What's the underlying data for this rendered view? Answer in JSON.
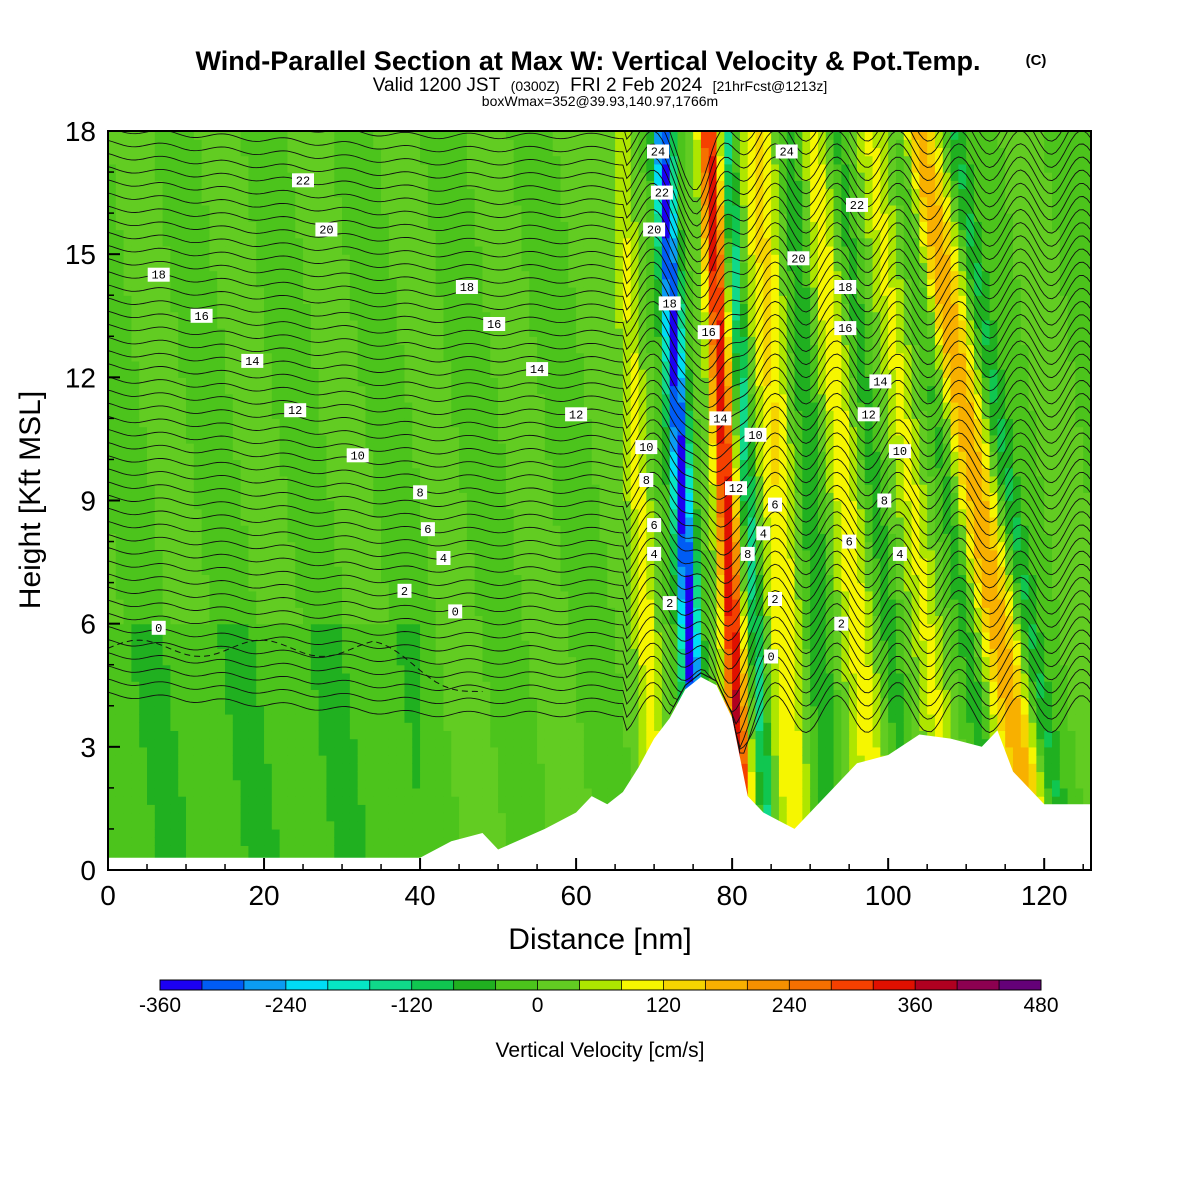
{
  "header": {
    "title": "Wind-Parallel Section at Max W: Vertical Velocity & Pot.Temp.",
    "copyright": "(C)",
    "valid_prefix": "Valid 1200 JST",
    "valid_utc": "(0300Z)",
    "valid_date": "FRI 2 Feb 2024",
    "forecast_tag": "[21hrFcst@1213z]",
    "box_info": "boxWmax=352@39.93,140.97,1766m"
  },
  "chart_data": {
    "type": "heatmap",
    "title": "Wind-Parallel Section at Max W: Vertical Velocity & Pot.Temp.",
    "xlabel": "Distance [nm]",
    "ylabel": "Height [Kft MSL]",
    "xlim": [
      0,
      126
    ],
    "ylim": [
      0,
      18
    ],
    "xticks": [
      0,
      20,
      40,
      60,
      80,
      100,
      120
    ],
    "yticks": [
      0,
      3,
      6,
      9,
      12,
      15,
      18
    ],
    "grid": false,
    "field": "Vertical Velocity",
    "colorbar": {
      "label": "Vertical Velocity [cm/s]",
      "levels": [
        -360,
        -320,
        -280,
        -240,
        -200,
        -160,
        -120,
        -80,
        -40,
        0,
        40,
        80,
        120,
        160,
        200,
        240,
        280,
        320,
        360,
        400,
        440,
        480
      ],
      "tick_labels": [
        "-360",
        "-240",
        "-120",
        "0",
        "120",
        "240",
        "360",
        "480"
      ],
      "colors": [
        "#1c00f2",
        "#005cf5",
        "#0b9cf2",
        "#00dcf5",
        "#06e6c4",
        "#10d98a",
        "#10c650",
        "#20b020",
        "#4cc41c",
        "#62cc22",
        "#aee600",
        "#f6f600",
        "#f6d400",
        "#f8b000",
        "#f59000",
        "#f57000",
        "#f54000",
        "#e01000",
        "#b00020",
        "#8c0050",
        "#640078"
      ]
    },
    "max_vertical_velocity_cms": 352,
    "terrain_profile": {
      "x": [
        0,
        40,
        44,
        48,
        50,
        56,
        60,
        62,
        64,
        66,
        68,
        70,
        72,
        74,
        76,
        78,
        80,
        82,
        84,
        86,
        88,
        90,
        92,
        94,
        96,
        100,
        104,
        108,
        112,
        114,
        116,
        118,
        120,
        126
      ],
      "height": [
        0.3,
        0.3,
        0.7,
        0.9,
        0.5,
        1.0,
        1.4,
        1.8,
        1.6,
        1.9,
        2.5,
        3.2,
        3.7,
        4.4,
        4.7,
        4.5,
        3.7,
        1.8,
        1.4,
        1.2,
        1.0,
        1.4,
        1.8,
        2.2,
        2.6,
        2.8,
        3.3,
        3.2,
        3.0,
        3.4,
        2.4,
        2.0,
        1.6,
        1.6
      ]
    },
    "ridges": [
      {
        "name": "updraft",
        "x0": 80.0,
        "slope": 0.25,
        "sign": 1,
        "amp": 352,
        "width": 1.3
      },
      {
        "name": "downdraft",
        "x0": 74.5,
        "slope": 0.29,
        "sign": -1,
        "amp": 340,
        "width": 1.3
      },
      {
        "name": "downstream-sink",
        "x0": 83.0,
        "slope": 0.3,
        "sign": -1,
        "amp": 140,
        "width": 0.9
      },
      {
        "name": "wave-rise",
        "x0": 69.0,
        "slope": 0.28,
        "sign": 1,
        "amp": 90,
        "width": 1.6
      },
      {
        "name": "wave-rise",
        "x0": 86.5,
        "slope": 0.28,
        "sign": 1,
        "amp": 120,
        "width": 2.2
      },
      {
        "name": "wave-sink",
        "x0": 91.0,
        "slope": 0.28,
        "sign": -1,
        "amp": 90,
        "width": 1.6
      },
      {
        "name": "wave-rise",
        "x0": 96.0,
        "slope": 0.5,
        "sign": 1,
        "amp": 110,
        "width": 2.3
      },
      {
        "name": "wave-sink",
        "x0": 100.0,
        "slope": 0.55,
        "sign": -1,
        "amp": 70,
        "width": 1.5
      },
      {
        "name": "wave-rise",
        "x0": 105.0,
        "slope": 0.6,
        "sign": 1,
        "amp": 90,
        "width": 2.0
      },
      {
        "name": "wave-sink",
        "x0": 110.0,
        "slope": 0.7,
        "sign": -1,
        "amp": 70,
        "width": 1.4
      },
      {
        "name": "wave-rise",
        "x0": 114.0,
        "slope": 0.85,
        "sign": 1,
        "amp": 180,
        "width": 2.6
      },
      {
        "name": "wave-sink",
        "x0": 118.0,
        "slope": 0.8,
        "sign": -1,
        "amp": 90,
        "width": 1.4
      }
    ],
    "isentrope_labels": [
      {
        "text": "0",
        "x": 6.5,
        "y": 5.9
      },
      {
        "text": "2",
        "x": 38,
        "y": 6.8
      },
      {
        "text": "0",
        "x": 44.5,
        "y": 6.3
      },
      {
        "text": "4",
        "x": 43,
        "y": 7.6
      },
      {
        "text": "6",
        "x": 41,
        "y": 8.3
      },
      {
        "text": "8",
        "x": 40,
        "y": 9.2
      },
      {
        "text": "10",
        "x": 32,
        "y": 10.1
      },
      {
        "text": "12",
        "x": 24,
        "y": 11.2
      },
      {
        "text": "14",
        "x": 18.5,
        "y": 12.4
      },
      {
        "text": "16",
        "x": 12,
        "y": 13.5
      },
      {
        "text": "18",
        "x": 6.5,
        "y": 14.5
      },
      {
        "text": "20",
        "x": 28,
        "y": 15.6
      },
      {
        "text": "22",
        "x": 25,
        "y": 16.8
      },
      {
        "text": "18",
        "x": 46,
        "y": 14.2
      },
      {
        "text": "16",
        "x": 49.5,
        "y": 13.3
      },
      {
        "text": "14",
        "x": 55,
        "y": 12.2
      },
      {
        "text": "12",
        "x": 60,
        "y": 11.1
      },
      {
        "text": "10",
        "x": 69,
        "y": 10.3
      },
      {
        "text": "8",
        "x": 69,
        "y": 9.5
      },
      {
        "text": "6",
        "x": 70,
        "y": 8.4
      },
      {
        "text": "4",
        "x": 70,
        "y": 7.7
      },
      {
        "text": "2",
        "x": 72,
        "y": 6.5
      },
      {
        "text": "24",
        "x": 70.5,
        "y": 17.5
      },
      {
        "text": "22",
        "x": 71,
        "y": 16.5
      },
      {
        "text": "20",
        "x": 70,
        "y": 15.6
      },
      {
        "text": "18",
        "x": 72,
        "y": 13.8
      },
      {
        "text": "16",
        "x": 77,
        "y": 13.1
      },
      {
        "text": "14",
        "x": 78.5,
        "y": 11.0
      },
      {
        "text": "12",
        "x": 80.5,
        "y": 9.3
      },
      {
        "text": "10",
        "x": 83,
        "y": 10.6
      },
      {
        "text": "8",
        "x": 82,
        "y": 7.7
      },
      {
        "text": "4",
        "x": 84,
        "y": 8.2
      },
      {
        "text": "6",
        "x": 85.5,
        "y": 8.9
      },
      {
        "text": "2",
        "x": 85.5,
        "y": 6.6
      },
      {
        "text": "0",
        "x": 85,
        "y": 5.2
      },
      {
        "text": "24",
        "x": 87,
        "y": 17.5
      },
      {
        "text": "22",
        "x": 96,
        "y": 16.2
      },
      {
        "text": "20",
        "x": 88.5,
        "y": 14.9
      },
      {
        "text": "18",
        "x": 94.5,
        "y": 14.2
      },
      {
        "text": "16",
        "x": 94.5,
        "y": 13.2
      },
      {
        "text": "14",
        "x": 99,
        "y": 11.9
      },
      {
        "text": "12",
        "x": 97.5,
        "y": 11.1
      },
      {
        "text": "10",
        "x": 101.5,
        "y": 10.2
      },
      {
        "text": "8",
        "x": 99.5,
        "y": 9.0
      },
      {
        "text": "6",
        "x": 95,
        "y": 8.0
      },
      {
        "text": "4",
        "x": 101.5,
        "y": 7.7
      },
      {
        "text": "2",
        "x": 94,
        "y": 6.0
      }
    ]
  }
}
